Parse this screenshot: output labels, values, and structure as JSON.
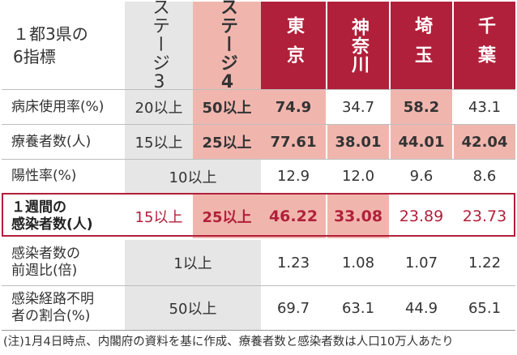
{
  "header": {
    "title_line1": "１都3県の",
    "title_line2": "6指標",
    "stage3": "ステージ3",
    "stage4": "ステージ4",
    "tokyo": "東京",
    "kanagawa": "神奈川",
    "saitama": "埼玉",
    "chiba": "千葉"
  },
  "rows": [
    {
      "label": "病床使用率(%)",
      "stage3": "20以上",
      "stage4": "50以上",
      "tokyo": "74.9",
      "kanagawa": "34.7",
      "saitama": "58.2",
      "chiba": "43.1"
    },
    {
      "label": "療養者数(人)",
      "stage3": "15以上",
      "stage4": "25以上",
      "tokyo": "77.61",
      "kanagawa": "38.01",
      "saitama": "44.01",
      "chiba": "42.04"
    },
    {
      "label": "陽性率(%)",
      "merged": "10以上",
      "tokyo": "12.9",
      "kanagawa": "12.0",
      "saitama": "9.6",
      "chiba": "8.6"
    },
    {
      "label1": "１週間の",
      "label2": "感染者数(人)",
      "stage3": "15以上",
      "stage4": "25以上",
      "tokyo": "46.22",
      "kanagawa": "33.08",
      "saitama": "23.89",
      "chiba": "23.73"
    },
    {
      "label1": "感染者数の",
      "label2": "前週比(倍)",
      "merged": "1以上",
      "tokyo": "1.23",
      "kanagawa": "1.08",
      "saitama": "1.07",
      "chiba": "1.22"
    },
    {
      "label1": "感染経路不明",
      "label2": "者の割合(%)",
      "merged": "50以上",
      "tokyo": "69.7",
      "kanagawa": "63.1",
      "saitama": "44.9",
      "chiba": "65.1"
    }
  ],
  "footnote": "(注)1月4日時点、内閣府の資料を基に作成、療養者数と感染者数は人口10万人あたり",
  "colors": {
    "crimson": "#b1203a",
    "pink": "#f0b6ae",
    "gray": "#e6e6e6"
  }
}
